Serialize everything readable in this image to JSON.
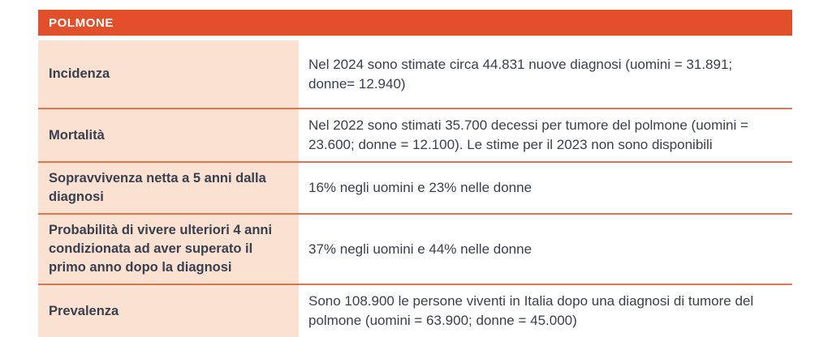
{
  "table": {
    "title": "POLMONE",
    "colors": {
      "header_bg": "#E1502A",
      "label_bg": "#FAE1D1",
      "divider": "#E2734B",
      "text": "#3A3F4E",
      "header_text": "#FFFFFF"
    },
    "rows": [
      {
        "label": "Incidenza",
        "value": "Nel 2024 sono stimate circa 44.831 nuove diagnosi (uomini = 31.891; donne= 12.940)"
      },
      {
        "label": "Mortalità",
        "value": "Nel 2022 sono stimati 35.700 decessi per tumore del polmone (uomini = 23.600; donne = 12.100). Le stime per il 2023 non sono disponibili"
      },
      {
        "label": "Sopravvivenza netta a 5 anni dalla diagnosi",
        "value": "16% negli uomini e 23% nelle donne"
      },
      {
        "label": "Probabilità di vivere ulteriori 4 anni condizionata ad aver superato il primo anno dopo la diagnosi",
        "value": "37% negli uomini e 44% nelle donne"
      },
      {
        "label": "Prevalenza",
        "value": "Sono 108.900 le persone viventi in Italia dopo una diagnosi di tumore del polmone (uomini = 63.900; donne = 45.000)"
      }
    ]
  }
}
